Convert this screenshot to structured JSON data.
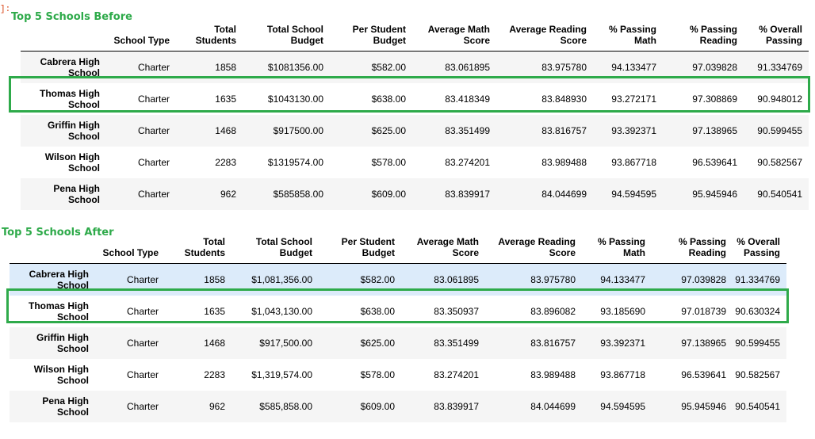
{
  "prompt_marker": "]:",
  "before": {
    "caption": "Top 5 Schools Before",
    "columns": [
      "School Type",
      "Total Students",
      "Total School Budget",
      "Per Student Budget",
      "Average Math Score",
      "Average Reading Score",
      "% Passing Math",
      "% Passing Reading",
      "% Overall Passing"
    ],
    "rows": [
      {
        "name": "Cabrera High School",
        "cells": [
          "Charter",
          "1858",
          "$1081356.00",
          "$582.00",
          "83.061895",
          "83.975780",
          "94.133477",
          "97.039828",
          "91.334769"
        ]
      },
      {
        "name": "Thomas High School",
        "cells": [
          "Charter",
          "1635",
          "$1043130.00",
          "$638.00",
          "83.418349",
          "83.848930",
          "93.272171",
          "97.308869",
          "90.948012"
        ]
      },
      {
        "name": "Griffin High School",
        "cells": [
          "Charter",
          "1468",
          "$917500.00",
          "$625.00",
          "83.351499",
          "83.816757",
          "93.392371",
          "97.138965",
          "90.599455"
        ]
      },
      {
        "name": "Wilson High School",
        "cells": [
          "Charter",
          "2283",
          "$1319574.00",
          "$578.00",
          "83.274201",
          "83.989488",
          "93.867718",
          "96.539641",
          "90.582567"
        ]
      },
      {
        "name": "Pena High School",
        "cells": [
          "Charter",
          "962",
          "$585858.00",
          "$609.00",
          "83.839917",
          "84.044699",
          "94.594595",
          "95.945946",
          "90.540541"
        ]
      }
    ]
  },
  "after": {
    "caption": "Top 5 Schools After",
    "columns": [
      "School Type",
      "Total Students",
      "Total School Budget",
      "Per Student Budget",
      "Average Math Score",
      "Average Reading Score",
      "% Passing Math",
      "% Passing Reading",
      "% Overall Passing"
    ],
    "rows": [
      {
        "name": "Cabrera High School",
        "cells": [
          "Charter",
          "1858",
          "$1,081,356.00",
          "$582.00",
          "83.061895",
          "83.975780",
          "94.133477",
          "97.039828",
          "91.334769"
        ]
      },
      {
        "name": "Thomas High School",
        "cells": [
          "Charter",
          "1635",
          "$1,043,130.00",
          "$638.00",
          "83.350937",
          "83.896082",
          "93.185690",
          "97.018739",
          "90.630324"
        ]
      },
      {
        "name": "Griffin High School",
        "cells": [
          "Charter",
          "1468",
          "$917,500.00",
          "$625.00",
          "83.351499",
          "83.816757",
          "93.392371",
          "97.138965",
          "90.599455"
        ]
      },
      {
        "name": "Wilson High School",
        "cells": [
          "Charter",
          "2283",
          "$1,319,574.00",
          "$578.00",
          "83.274201",
          "83.989488",
          "93.867718",
          "96.539641",
          "90.582567"
        ]
      },
      {
        "name": "Pena High School",
        "cells": [
          "Charter",
          "962",
          "$585,858.00",
          "$609.00",
          "83.839917",
          "84.044699",
          "94.594595",
          "95.945946",
          "90.540541"
        ]
      }
    ]
  },
  "colors": {
    "caption": "#2eaa4a",
    "highlight_border": "#2eaa4a",
    "hover_row": "#dcebfa",
    "striped_row": "#f5f5f5"
  }
}
